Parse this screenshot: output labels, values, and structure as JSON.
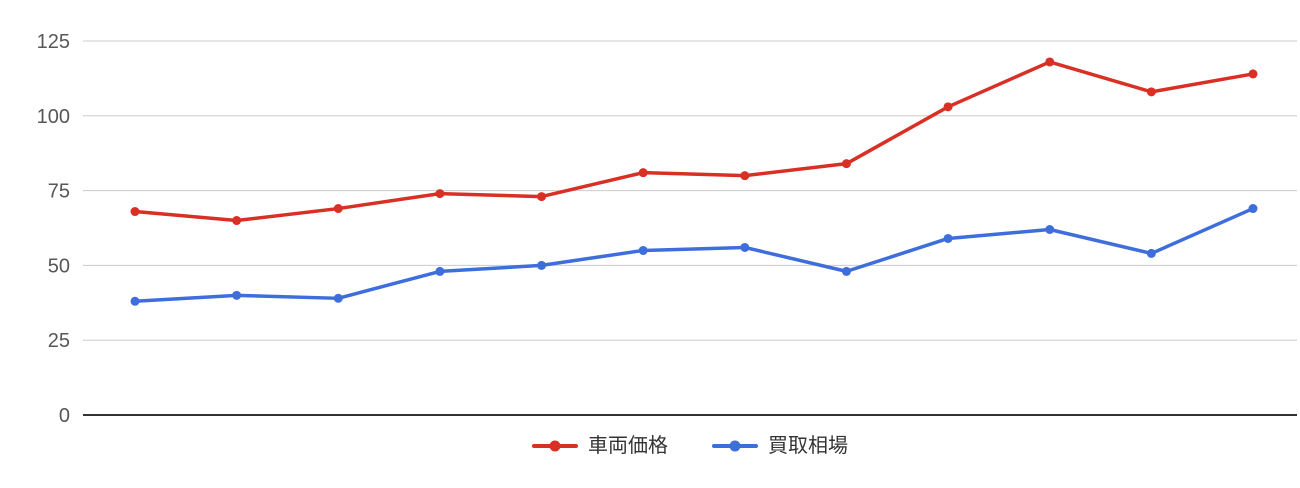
{
  "chart_data": {
    "type": "line",
    "title": "",
    "xlabel": "",
    "ylabel": "",
    "x_tick_labels": [],
    "yticks": [
      0,
      25,
      50,
      75,
      100,
      125
    ],
    "ylim": [
      0,
      125
    ],
    "grid": true,
    "legend_position": "bottom",
    "point_count": 12,
    "series": [
      {
        "name": "車両価格",
        "color": "#d93025",
        "values": [
          68,
          65,
          69,
          74,
          73,
          81,
          80,
          84,
          103,
          118,
          108,
          114
        ]
      },
      {
        "name": "買取相場",
        "color": "#3d6edb",
        "values": [
          38,
          40,
          39,
          48,
          50,
          55,
          56,
          48,
          59,
          62,
          54,
          69
        ]
      }
    ]
  },
  "colors": {
    "background": "#ffffff",
    "gridline": "#cccccc",
    "axis_line": "#333333",
    "tick_label": "#575757",
    "legend_text": "#333333"
  }
}
